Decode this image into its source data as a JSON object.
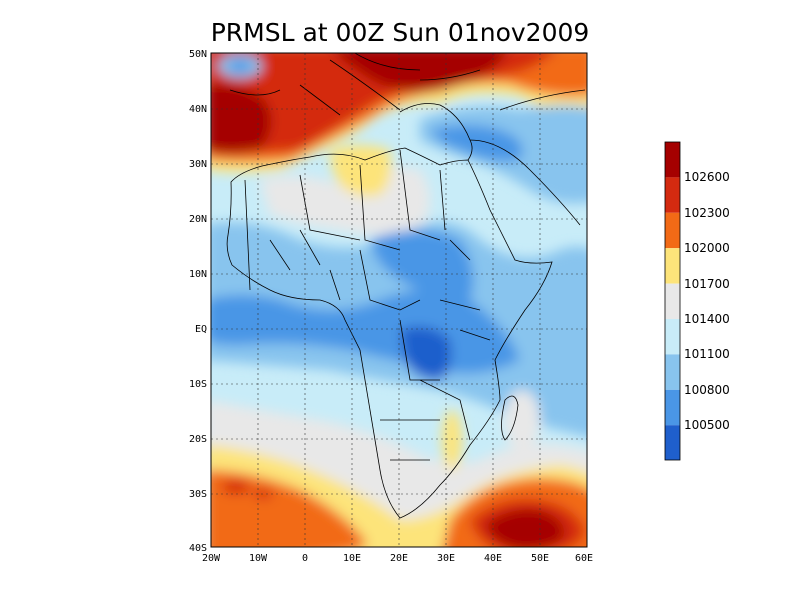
{
  "title": "PRMSL at 00Z Sun 01nov2009",
  "lat_ticks": [
    "50N",
    "40N",
    "30N",
    "20N",
    "10N",
    "EQ",
    "10S",
    "20S",
    "30S",
    "40S"
  ],
  "lon_ticks": [
    "20W",
    "10W",
    "0",
    "10E",
    "20E",
    "30E",
    "40E",
    "50E",
    "60E"
  ],
  "colorbar": {
    "labels": [
      "102600",
      "102300",
      "102000",
      "101700",
      "101400",
      "101100",
      "100800",
      "100500"
    ],
    "colors": [
      "#a50000",
      "#d42a10",
      "#f26a16",
      "#fde47a",
      "#e8e8e8",
      "#c8ecf8",
      "#88c4ee",
      "#4a96e6",
      "#1f5fcc"
    ]
  }
}
